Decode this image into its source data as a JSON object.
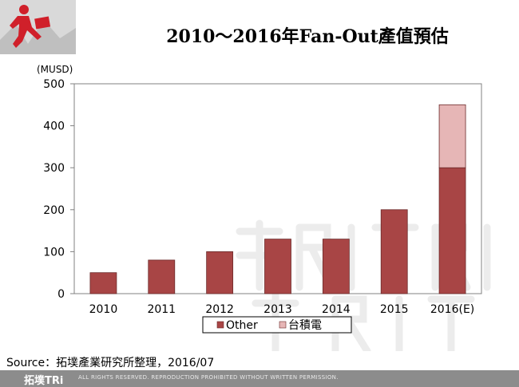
{
  "slide": {
    "title": "2010～2016年Fan-Out產值預估",
    "source": "Source：拓墣產業研究所整理，2016/07",
    "footer_brand": "拓墣TRi",
    "footer_text": "ALL RIGHTS RESERVED. REPRODUCTION PROHIBITED WITHOUT WRITTEN PERMISSION."
  },
  "chart_data": {
    "type": "bar",
    "stacked": true,
    "title": "2010～2016年Fan-Out產值預估",
    "ylabel": "(MUSD)",
    "xlabel": "",
    "ylim": [
      0,
      500
    ],
    "yticks": [
      0,
      100,
      200,
      300,
      400,
      500
    ],
    "categories": [
      "2010",
      "2011",
      "2012",
      "2013",
      "2014",
      "2015",
      "2016(E)"
    ],
    "series": [
      {
        "name": "Other",
        "color": "#a84545",
        "values": [
          50,
          80,
          100,
          130,
          130,
          200,
          300
        ]
      },
      {
        "name": "台積電",
        "color": "#e6b6b6",
        "values": [
          0,
          0,
          0,
          0,
          0,
          0,
          150
        ]
      }
    ],
    "legend_position": "bottom",
    "grid": false
  }
}
